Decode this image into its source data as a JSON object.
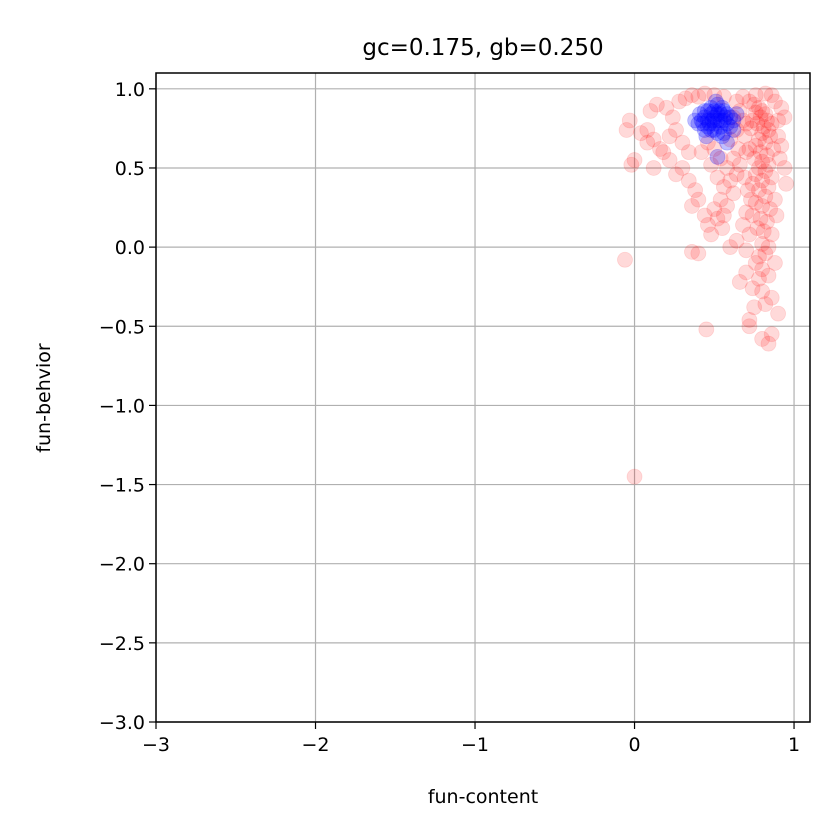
{
  "chart_data": {
    "type": "scatter",
    "title": "gc=0.175, gb=0.250",
    "xlabel": "fun-content",
    "ylabel": "fun-behvior",
    "xlim": [
      -3.0,
      1.1
    ],
    "ylim": [
      -3.0,
      1.1
    ],
    "xticks": [
      -3,
      -2,
      -1,
      0,
      1
    ],
    "xtick_labels": [
      "−3",
      "−2",
      "−1",
      "0",
      "1"
    ],
    "yticks": [
      -3.0,
      -2.5,
      -2.0,
      -1.5,
      -1.0,
      -0.5,
      0.0,
      0.5,
      1.0
    ],
    "ytick_labels": [
      "−3.0",
      "−2.5",
      "−2.0",
      "−1.5",
      "−1.0",
      "−0.5",
      "0.0",
      "0.5",
      "1.0"
    ],
    "grid": true,
    "legend": "none",
    "series": [
      {
        "color": "#ff0000",
        "opacity": 0.15,
        "points": [
          [
            0.72,
            0.92
          ],
          [
            0.75,
            0.9
          ],
          [
            0.78,
            0.88
          ],
          [
            0.8,
            0.86
          ],
          [
            0.82,
            0.84
          ],
          [
            0.76,
            0.85
          ],
          [
            0.79,
            0.82
          ],
          [
            0.83,
            0.8
          ],
          [
            0.86,
            0.78
          ],
          [
            0.74,
            0.8
          ],
          [
            0.77,
            0.78
          ],
          [
            0.81,
            0.76
          ],
          [
            0.84,
            0.74
          ],
          [
            0.7,
            0.78
          ],
          [
            0.73,
            0.75
          ],
          [
            0.8,
            0.72
          ],
          [
            0.85,
            0.7
          ],
          [
            0.78,
            0.68
          ],
          [
            0.82,
            0.66
          ],
          [
            0.76,
            0.64
          ],
          [
            0.72,
            0.62
          ],
          [
            0.79,
            0.6
          ],
          [
            0.83,
            0.58
          ],
          [
            0.87,
            0.62
          ],
          [
            0.75,
            0.56
          ],
          [
            0.8,
            0.54
          ],
          [
            0.84,
            0.52
          ],
          [
            0.78,
            0.5
          ],
          [
            0.82,
            0.48
          ],
          [
            0.76,
            0.46
          ],
          [
            0.86,
            0.44
          ],
          [
            0.8,
            0.42
          ],
          [
            0.74,
            0.4
          ],
          [
            0.84,
            0.38
          ],
          [
            0.78,
            0.36
          ],
          [
            0.82,
            0.32
          ],
          [
            0.88,
            0.3
          ],
          [
            0.76,
            0.28
          ],
          [
            0.8,
            0.26
          ],
          [
            0.85,
            0.24
          ],
          [
            0.7,
            0.22
          ],
          [
            0.74,
            0.2
          ],
          [
            0.79,
            0.18
          ],
          [
            0.83,
            0.16
          ],
          [
            0.89,
            0.2
          ],
          [
            0.68,
            0.14
          ],
          [
            0.77,
            0.12
          ],
          [
            0.81,
            0.1
          ],
          [
            0.86,
            0.08
          ],
          [
            0.72,
            0.08
          ],
          [
            0.8,
            0.02
          ],
          [
            0.84,
            0.0
          ],
          [
            0.78,
            -0.06
          ],
          [
            0.82,
            -0.04
          ],
          [
            0.76,
            -0.1
          ],
          [
            0.8,
            -0.14
          ],
          [
            0.84,
            -0.18
          ],
          [
            0.78,
            -0.2
          ],
          [
            0.74,
            -0.26
          ],
          [
            0.8,
            -0.28
          ],
          [
            0.86,
            -0.32
          ],
          [
            0.82,
            -0.36
          ],
          [
            0.9,
            -0.42
          ],
          [
            0.72,
            -0.46
          ],
          [
            0.86,
            -0.55
          ],
          [
            0.8,
            -0.58
          ],
          [
            0.84,
            -0.61
          ],
          [
            0.72,
            -0.5
          ],
          [
            0.75,
            -0.38
          ],
          [
            0.88,
            -0.1
          ],
          [
            0.9,
            0.7
          ],
          [
            0.92,
            0.64
          ],
          [
            0.91,
            0.56
          ],
          [
            0.94,
            0.5
          ],
          [
            0.95,
            0.4
          ],
          [
            0.88,
            0.92
          ],
          [
            0.92,
            0.88
          ],
          [
            0.94,
            0.82
          ],
          [
            0.9,
            0.8
          ],
          [
            0.86,
            0.96
          ],
          [
            0.82,
            0.97
          ],
          [
            0.76,
            0.96
          ],
          [
            0.68,
            0.95
          ],
          [
            0.64,
            0.92
          ],
          [
            0.66,
            0.86
          ],
          [
            0.62,
            0.82
          ],
          [
            0.68,
            0.8
          ],
          [
            0.64,
            0.74
          ],
          [
            0.69,
            0.7
          ],
          [
            0.6,
            0.68
          ],
          [
            0.65,
            0.62
          ],
          [
            0.7,
            0.6
          ],
          [
            0.62,
            0.56
          ],
          [
            0.66,
            0.52
          ],
          [
            0.58,
            0.5
          ],
          [
            0.64,
            0.46
          ],
          [
            0.6,
            0.42
          ],
          [
            0.56,
            0.38
          ],
          [
            0.62,
            0.34
          ],
          [
            0.54,
            0.3
          ],
          [
            0.58,
            0.26
          ],
          [
            0.5,
            0.24
          ],
          [
            0.52,
            0.18
          ],
          [
            0.46,
            0.14
          ],
          [
            0.55,
            0.12
          ],
          [
            0.44,
            0.2
          ],
          [
            0.48,
            0.08
          ],
          [
            0.4,
            0.3
          ],
          [
            0.36,
            0.26
          ],
          [
            0.34,
            0.42
          ],
          [
            0.38,
            0.36
          ],
          [
            0.3,
            0.5
          ],
          [
            0.26,
            0.46
          ],
          [
            0.22,
            0.55
          ],
          [
            0.16,
            0.62
          ],
          [
            0.12,
            0.68
          ],
          [
            0.08,
            0.74
          ],
          [
            0.1,
            0.86
          ],
          [
            0.14,
            0.9
          ],
          [
            0.2,
            0.88
          ],
          [
            0.24,
            0.82
          ],
          [
            0.28,
            0.92
          ],
          [
            0.32,
            0.94
          ],
          [
            0.36,
            0.96
          ],
          [
            0.4,
            0.95
          ],
          [
            0.44,
            0.97
          ],
          [
            0.5,
            0.96
          ],
          [
            0.56,
            0.95
          ],
          [
            0.46,
            0.66
          ],
          [
            0.42,
            0.6
          ],
          [
            0.5,
            0.62
          ],
          [
            0.54,
            0.56
          ],
          [
            0.48,
            0.52
          ],
          [
            0.52,
            0.44
          ],
          [
            0.56,
            0.2
          ],
          [
            -0.05,
            0.74
          ],
          [
            -0.03,
            0.8
          ],
          [
            0.0,
            0.55
          ],
          [
            -0.02,
            0.52
          ],
          [
            0.12,
            0.5
          ],
          [
            0.08,
            0.66
          ],
          [
            0.04,
            0.72
          ],
          [
            0.18,
            0.6
          ],
          [
            0.22,
            0.7
          ],
          [
            0.26,
            0.74
          ],
          [
            0.3,
            0.66
          ],
          [
            0.34,
            0.6
          ],
          [
            0.36,
            -0.03
          ],
          [
            0.4,
            -0.04
          ],
          [
            -0.06,
            -0.08
          ],
          [
            0.0,
            -1.45
          ],
          [
            0.45,
            -0.52
          ],
          [
            0.6,
            0.0
          ],
          [
            0.64,
            0.04
          ],
          [
            0.7,
            -0.02
          ],
          [
            0.66,
            -0.22
          ],
          [
            0.7,
            -0.16
          ],
          [
            0.73,
            0.3
          ],
          [
            0.71,
            0.36
          ],
          [
            0.69,
            0.44
          ]
        ]
      },
      {
        "color": "#0000ff",
        "opacity": 0.25,
        "points": [
          [
            0.46,
            0.86
          ],
          [
            0.48,
            0.84
          ],
          [
            0.5,
            0.82
          ],
          [
            0.52,
            0.8
          ],
          [
            0.54,
            0.84
          ],
          [
            0.56,
            0.86
          ],
          [
            0.44,
            0.82
          ],
          [
            0.42,
            0.8
          ],
          [
            0.4,
            0.78
          ],
          [
            0.46,
            0.76
          ],
          [
            0.5,
            0.78
          ],
          [
            0.54,
            0.76
          ],
          [
            0.58,
            0.78
          ],
          [
            0.6,
            0.82
          ],
          [
            0.56,
            0.8
          ],
          [
            0.48,
            0.88
          ],
          [
            0.52,
            0.9
          ],
          [
            0.44,
            0.86
          ],
          [
            0.5,
            0.86
          ],
          [
            0.58,
            0.84
          ],
          [
            0.62,
            0.8
          ],
          [
            0.64,
            0.84
          ],
          [
            0.6,
            0.76
          ],
          [
            0.56,
            0.72
          ],
          [
            0.52,
            0.72
          ],
          [
            0.48,
            0.74
          ],
          [
            0.44,
            0.74
          ],
          [
            0.41,
            0.84
          ],
          [
            0.38,
            0.8
          ],
          [
            0.46,
            0.8
          ],
          [
            0.52,
            0.84
          ],
          [
            0.55,
            0.88
          ],
          [
            0.5,
            0.74
          ],
          [
            0.47,
            0.78
          ],
          [
            0.53,
            0.86
          ],
          [
            0.57,
            0.82
          ],
          [
            0.43,
            0.78
          ],
          [
            0.51,
            0.92
          ],
          [
            0.49,
            0.8
          ],
          [
            0.54,
            0.8
          ],
          [
            0.52,
            0.57
          ],
          [
            0.58,
            0.66
          ],
          [
            0.55,
            0.7
          ],
          [
            0.62,
            0.74
          ],
          [
            0.45,
            0.7
          ]
        ]
      }
    ]
  }
}
